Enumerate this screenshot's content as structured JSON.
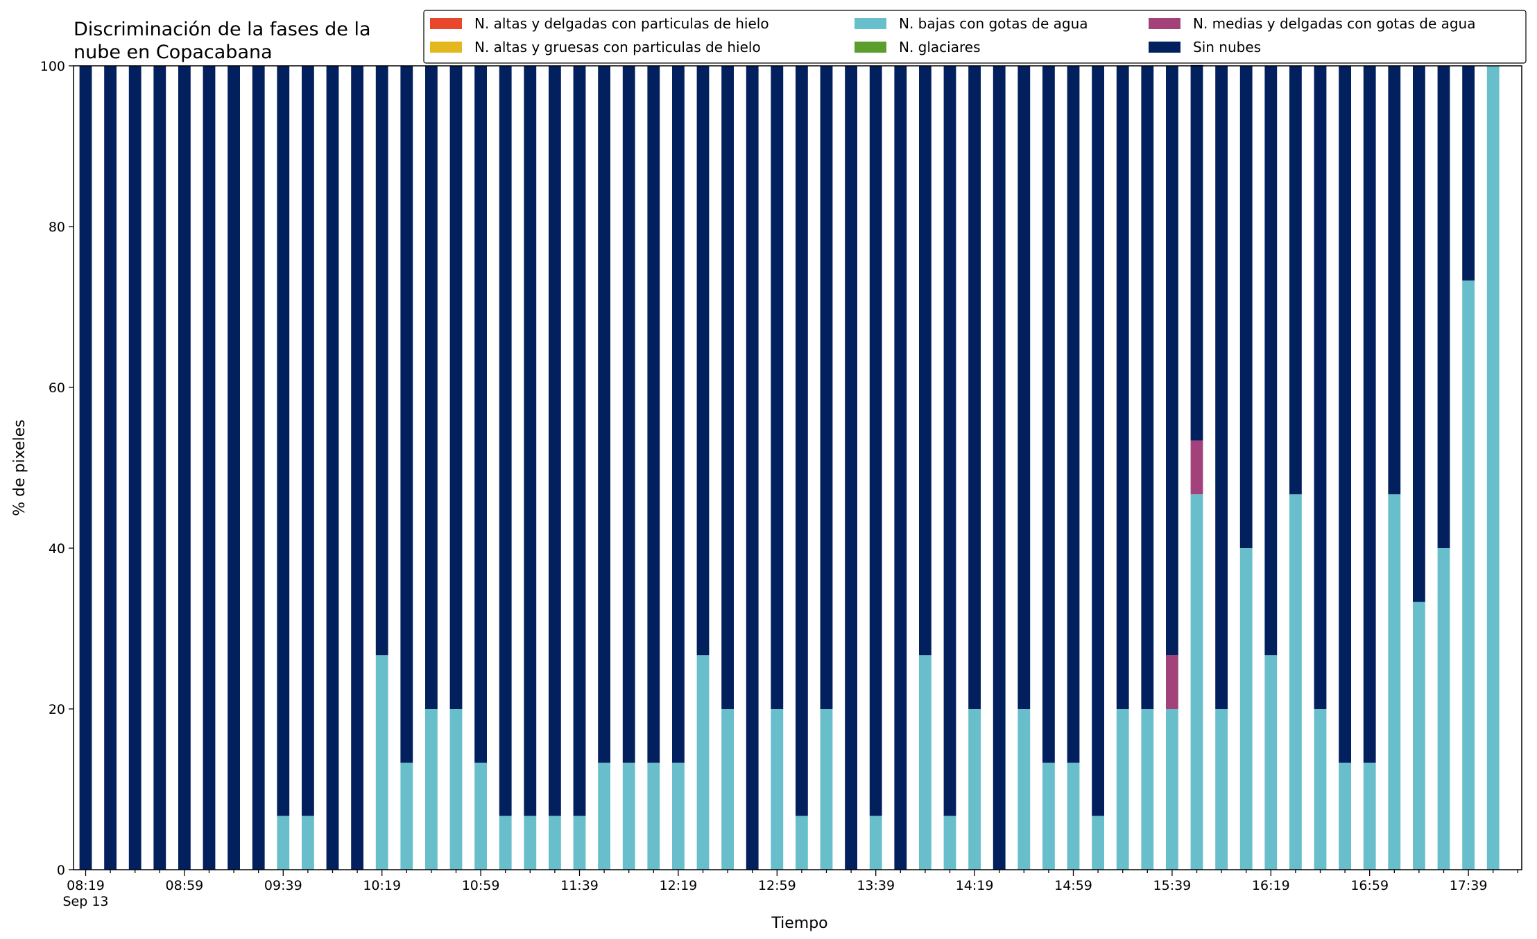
{
  "chart_data": {
    "type": "bar",
    "stacked": true,
    "title_lines": [
      "Discriminación de la fases de la",
      "nube en Copacabana"
    ],
    "xlabel": "Tiempo",
    "ylabel": "% de pixeles",
    "ylim": [
      0,
      100
    ],
    "yticks": [
      0,
      20,
      40,
      60,
      80,
      100
    ],
    "xtick_labels": [
      {
        "index": 0,
        "label": "08:19",
        "sublabel": "Sep 13"
      },
      {
        "index": 4,
        "label": "08:59"
      },
      {
        "index": 8,
        "label": "09:39"
      },
      {
        "index": 12,
        "label": "10:19"
      },
      {
        "index": 16,
        "label": "10:59"
      },
      {
        "index": 20,
        "label": "11:39"
      },
      {
        "index": 24,
        "label": "12:19"
      },
      {
        "index": 28,
        "label": "12:59"
      },
      {
        "index": 32,
        "label": "13:39"
      },
      {
        "index": 36,
        "label": "14:19"
      },
      {
        "index": 40,
        "label": "14:59"
      },
      {
        "index": 44,
        "label": "15:39"
      },
      {
        "index": 48,
        "label": "16:19"
      },
      {
        "index": 52,
        "label": "16:59"
      },
      {
        "index": 56,
        "label": "17:39"
      }
    ],
    "grid": false,
    "legend_position": "top-right",
    "legend": [
      {
        "name": "N. altas y delgadas con particulas de hielo",
        "color": "#e8472b"
      },
      {
        "name": "N. altas y gruesas con particulas de hielo",
        "color": "#e3b81f"
      },
      {
        "name": "N. bajas con gotas de agua",
        "color": "#68bfcb"
      },
      {
        "name": "N. glaciares",
        "color": "#5c9e2e"
      },
      {
        "name": "N. medias y delgadas con gotas de agua",
        "color": "#a3427a"
      },
      {
        "name": "Sin nubes",
        "color": "#021f5e"
      }
    ],
    "bar_count": 58,
    "series": [
      {
        "name": "N. altas y delgadas con particulas de hielo",
        "color": "#e8472b",
        "values": [
          0,
          0,
          0,
          0,
          0,
          0,
          0,
          0,
          0,
          0,
          0,
          0,
          0,
          0,
          0,
          0,
          0,
          0,
          0,
          0,
          0,
          0,
          0,
          0,
          0,
          0,
          0,
          0,
          0,
          0,
          0,
          0,
          0,
          0,
          0,
          0,
          0,
          0,
          0,
          0,
          0,
          0,
          0,
          0,
          0,
          0,
          0,
          0,
          0,
          0,
          0,
          0,
          0,
          0,
          0,
          0,
          0,
          0
        ]
      },
      {
        "name": "N. altas y gruesas con particulas de hielo",
        "color": "#e3b81f",
        "values": [
          0,
          0,
          0,
          0,
          0,
          0,
          0,
          0,
          0,
          0,
          0,
          0,
          0,
          0,
          0,
          0,
          0,
          0,
          0,
          0,
          0,
          0,
          0,
          0,
          0,
          0,
          0,
          0,
          0,
          0,
          0,
          0,
          0,
          0,
          0,
          0,
          0,
          0,
          0,
          0,
          0,
          0,
          0,
          0,
          0,
          0,
          0,
          0,
          0,
          0,
          0,
          0,
          0,
          0,
          0,
          0,
          0,
          0
        ]
      },
      {
        "name": "N. bajas con gotas de agua",
        "color": "#68bfcb",
        "values": [
          0,
          0,
          0,
          0,
          0,
          0,
          0,
          0,
          6.7,
          6.7,
          0,
          0,
          26.7,
          13.3,
          20,
          20,
          13.3,
          6.7,
          6.7,
          6.7,
          6.7,
          13.3,
          13.3,
          13.3,
          13.3,
          26.7,
          20,
          0,
          20,
          6.7,
          20,
          0,
          6.7,
          0,
          26.7,
          6.7,
          20,
          0,
          20,
          13.3,
          13.3,
          6.7,
          20,
          20,
          20,
          46.7,
          20,
          40,
          26.7,
          46.7,
          20,
          13.3,
          13.3,
          46.7,
          33.3,
          40,
          73.3,
          100
        ]
      },
      {
        "name": "N. glaciares",
        "color": "#5c9e2e",
        "values": [
          0,
          0,
          0,
          0,
          0,
          0,
          0,
          0,
          0,
          0,
          0,
          0,
          0,
          0,
          0,
          0,
          0,
          0,
          0,
          0,
          0,
          0,
          0,
          0,
          0,
          0,
          0,
          0,
          0,
          0,
          0,
          0,
          0,
          0,
          0,
          0,
          0,
          0,
          0,
          0,
          0,
          0,
          0,
          0,
          0,
          0,
          0,
          0,
          0,
          0,
          0,
          0,
          0,
          0,
          0,
          0,
          0,
          0
        ]
      },
      {
        "name": "N. medias y delgadas con gotas de agua",
        "color": "#a3427a",
        "values": [
          0,
          0,
          0,
          0,
          0,
          0,
          0,
          0,
          0,
          0,
          0,
          0,
          0,
          0,
          0,
          0,
          0,
          0,
          0,
          0,
          0,
          0,
          0,
          0,
          0,
          0,
          0,
          0,
          0,
          0,
          0,
          0,
          0,
          0,
          0,
          0,
          0,
          0,
          0,
          0,
          0,
          0,
          0,
          0,
          6.7,
          6.7,
          0,
          0,
          0,
          0,
          0,
          0,
          0,
          0,
          0,
          0,
          0,
          0
        ]
      },
      {
        "name": "Sin nubes",
        "color": "#021f5e",
        "values": [
          100,
          100,
          100,
          100,
          100,
          100,
          100,
          100,
          93.3,
          93.3,
          100,
          100,
          73.3,
          86.7,
          80,
          80,
          86.7,
          93.3,
          93.3,
          93.3,
          93.3,
          86.7,
          86.7,
          86.7,
          86.7,
          73.3,
          80,
          100,
          80,
          93.3,
          80,
          100,
          93.3,
          100,
          73.3,
          93.3,
          80,
          100,
          80,
          86.7,
          86.7,
          93.3,
          80,
          80,
          73.3,
          46.7,
          80,
          60,
          73.3,
          53.3,
          80,
          86.7,
          86.7,
          53.3,
          66.7,
          60,
          26.7,
          0
        ]
      }
    ]
  }
}
